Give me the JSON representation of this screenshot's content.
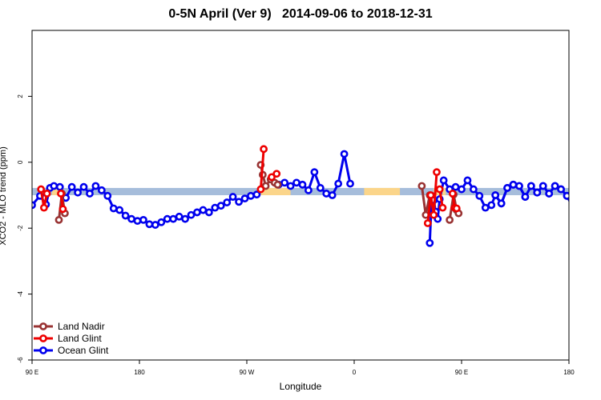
{
  "chart_data": {
    "type": "line",
    "title": "0-5N April (Ver 9)   2014-09-06 to 2018-12-31",
    "xlabel": "Longitude",
    "ylabel": "XCO2 - MLO trend (ppm)",
    "xlim": [
      -90,
      180
    ],
    "ylim": [
      -6,
      4
    ],
    "x_ticks": [
      {
        "value": -90,
        "label": "90 E"
      },
      {
        "value": -36,
        "label": "180"
      },
      {
        "value": 18,
        "label": "90 W"
      },
      {
        "value": 72,
        "label": "0"
      },
      {
        "value": 126,
        "label": "90 E"
      },
      {
        "value": 180,
        "label": "180"
      }
    ],
    "y_ticks": [
      {
        "value": -6,
        "label": "-6"
      },
      {
        "value": -4,
        "label": "-4"
      },
      {
        "value": -2,
        "label": "-2"
      },
      {
        "value": 0,
        "label": "0"
      },
      {
        "value": 2,
        "label": "2"
      }
    ],
    "band": {
      "y_low": -1.0,
      "y_high": -0.78,
      "color": "#a6bddb",
      "highlight_color": "#fbd58a",
      "highlight_ranges": [
        [
          -80,
          -75
        ],
        [
          25,
          40
        ],
        [
          77,
          95
        ],
        [
          112,
          118
        ]
      ]
    },
    "legend_position": "bottom-left",
    "series": [
      {
        "name": "Land Nadir",
        "color": "#993333",
        "segments": [
          {
            "x": [
              -76.5,
              -75,
              -73.5
            ],
            "y": [
              -1.75,
              -0.95,
              -1.55
            ]
          },
          {
            "x": [
              25,
              26,
              27.5,
              30,
              32,
              33.5
            ],
            "y": [
              -0.08,
              -0.38,
              -0.72,
              -0.52,
              -0.62,
              -0.68
            ]
          },
          {
            "x": [
              106,
              108,
              110
            ],
            "y": [
              -0.72,
              -1.6,
              -1.0
            ]
          },
          {
            "x": [
              120,
              122,
              123.5,
              124.5
            ],
            "y": [
              -1.75,
              -0.98,
              -1.45,
              -1.55
            ]
          }
        ]
      },
      {
        "name": "Land Glint",
        "color": "#ee0000",
        "segments": [
          {
            "x": [
              -85.5,
              -84,
              -82.5
            ],
            "y": [
              -0.82,
              -1.38,
              -0.95
            ]
          },
          {
            "x": [
              -75.5,
              -74.5
            ],
            "y": [
              -0.95,
              -1.42
            ]
          },
          {
            "x": [
              25,
              26.5
            ],
            "y": [
              -0.82,
              0.4
            ]
          },
          {
            "x": [
              30.5,
              33
            ],
            "y": [
              -0.45,
              -0.35
            ]
          },
          {
            "x": [
              109,
              110.5,
              112,
              113.5
            ],
            "y": [
              -1.85,
              -1.0,
              -1.6,
              -0.3
            ]
          },
          {
            "x": [
              115,
              116.5
            ],
            "y": [
              -0.82,
              -1.38
            ]
          },
          {
            "x": [
              121.5,
              122.5,
              123.5
            ],
            "y": [
              -0.95,
              -1.38,
              -1.4
            ]
          }
        ]
      },
      {
        "name": "Ocean Glint",
        "color": "#0000ee",
        "segments": [
          {
            "x": [
              -90,
              -86,
              -83,
              -81,
              -79,
              -76,
              -73,
              -70,
              -67,
              -64,
              -61,
              -58,
              -55,
              -52,
              -49,
              -46,
              -43,
              -40,
              -37,
              -34,
              -31,
              -28,
              -25,
              -22,
              -19,
              -16,
              -13,
              -10,
              -7,
              -4,
              -1,
              2,
              5,
              8,
              11,
              14,
              17,
              20,
              23
            ],
            "y": [
              -1.3,
              -1.02,
              -1.28,
              -0.78,
              -0.72,
              -0.75,
              -1.08,
              -0.75,
              -0.92,
              -0.75,
              -0.95,
              -0.72,
              -0.85,
              -1.02,
              -1.4,
              -1.45,
              -1.62,
              -1.72,
              -1.78,
              -1.75,
              -1.88,
              -1.9,
              -1.82,
              -1.72,
              -1.72,
              -1.65,
              -1.72,
              -1.6,
              -1.52,
              -1.45,
              -1.52,
              -1.38,
              -1.32,
              -1.22,
              -1.05,
              -1.2,
              -1.1,
              -1.02,
              -0.98
            ]
          },
          {
            "x": [
              34,
              37,
              40,
              43,
              46,
              49,
              52,
              55,
              58,
              61,
              64,
              67,
              70
            ],
            "y": [
              -0.68,
              -0.62,
              -0.72,
              -0.62,
              -0.68,
              -0.85,
              -0.3,
              -0.78,
              -0.95,
              -1.0,
              -0.65,
              0.25,
              -0.65
            ]
          },
          {
            "x": [
              110,
              111,
              112,
              113,
              114,
              115,
              117,
              120,
              123,
              126,
              129,
              132,
              135,
              138,
              141,
              143,
              146,
              149,
              152,
              155,
              158,
              161,
              164,
              167,
              170,
              173,
              176,
              179
            ],
            "y": [
              -2.45,
              -1.02,
              -1.15,
              -1.5,
              -1.72,
              -1.12,
              -0.55,
              -0.82,
              -0.75,
              -0.82,
              -0.55,
              -0.82,
              -1.02,
              -1.38,
              -1.3,
              -1.0,
              -1.25,
              -0.78,
              -0.68,
              -0.72,
              -1.05,
              -0.72,
              -0.92,
              -0.72,
              -0.95,
              -0.72,
              -0.82,
              -1.02
            ]
          },
          {
            "x": [
              143,
              146,
              149,
              152,
              155,
              158
            ],
            "y": [
              -1.0,
              -1.25,
              -0.78,
              -0.68,
              -0.72,
              -1.05
            ]
          },
          {
            "x": [
              161,
              164,
              167,
              170,
              173,
              176,
              179,
              182,
              185,
              188,
              191,
              194
            ],
            "y": [
              -0.72,
              -0.92,
              -0.72,
              -0.95,
              -0.72,
              -0.82,
              -1.02,
              -1.38,
              -1.48,
              -1.65,
              -1.72,
              -1.72
            ]
          }
        ]
      }
    ]
  }
}
